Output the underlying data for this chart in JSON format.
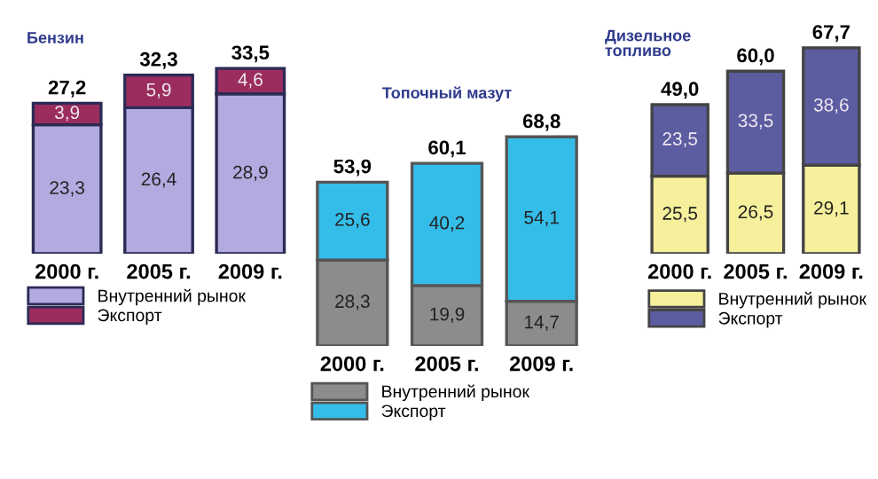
{
  "chart_data": [
    {
      "type": "bar",
      "title": "Бензин",
      "stacked": true,
      "legend": "bottom",
      "categories": [
        "2000 г.",
        "2005 г.",
        "2009 г."
      ],
      "series": [
        {
          "name": "Внутренний рынок",
          "color": "#b3aae0",
          "values": [
            23.3,
            26.4,
            28.9
          ],
          "value_labels": [
            "23,3",
            "26,4",
            "28,9"
          ]
        },
        {
          "name": "Экспорт",
          "color": "#9b2d5e",
          "values": [
            3.9,
            5.9,
            4.6
          ],
          "value_labels": [
            "3,9",
            "5,9",
            "4,6"
          ]
        }
      ],
      "totals": [
        "27,2",
        "32,3",
        "33,5"
      ]
    },
    {
      "type": "bar",
      "title": "Топочный мазут",
      "stacked": true,
      "legend": "bottom",
      "categories": [
        "2000 г.",
        "2005 г.",
        "2009 г."
      ],
      "series": [
        {
          "name": "Внутренний рынок",
          "color": "#8c8c8c",
          "values": [
            28.3,
            19.9,
            14.7
          ],
          "value_labels": [
            "28,3",
            "19,9",
            "14,7"
          ]
        },
        {
          "name": "Экспорт",
          "color": "#35bde9",
          "values": [
            25.6,
            40.2,
            54.1
          ],
          "value_labels": [
            "25,6",
            "40,2",
            "54,1"
          ]
        }
      ],
      "totals": [
        "53,9",
        "60,1",
        "68,8"
      ]
    },
    {
      "type": "bar",
      "title": "Дизельное\nтопливо",
      "stacked": true,
      "legend": "bottom",
      "categories": [
        "2000 г.",
        "2005 г.",
        "2009 г."
      ],
      "series": [
        {
          "name": "Внутренний рынок",
          "color": "#f6f09c",
          "values": [
            25.5,
            26.5,
            29.1
          ],
          "value_labels": [
            "25,5",
            "26,5",
            "29,1"
          ]
        },
        {
          "name": "Экспорт",
          "color": "#5c5ca0",
          "values": [
            23.5,
            33.5,
            38.6
          ],
          "value_labels": [
            "23,5",
            "33,5",
            "38,6"
          ]
        }
      ],
      "totals": [
        "49,0",
        "60,0",
        "67,7"
      ]
    }
  ]
}
